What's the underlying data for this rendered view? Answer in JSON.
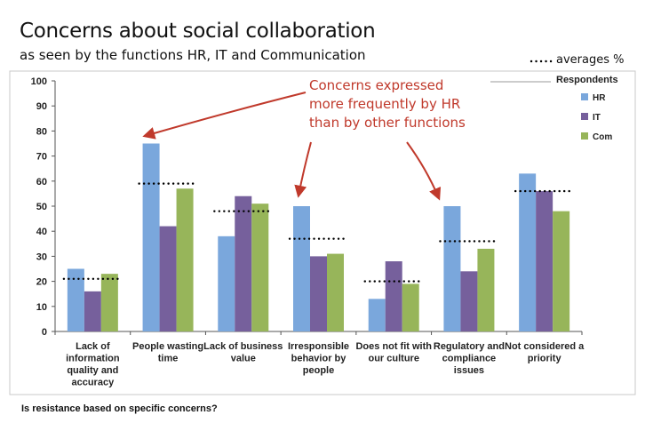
{
  "header": {
    "title": "Concerns about social collaboration",
    "subtitle": "as seen by the functions HR, IT and Communication",
    "averages_label": "averages %"
  },
  "footer": {
    "note": "Is resistance based on specific concerns?"
  },
  "annotation": {
    "lines": [
      "Concerns expressed",
      "more frequently by HR",
      "than by other functions"
    ],
    "color": "#c0392b"
  },
  "chart_data": {
    "type": "bar",
    "categories": [
      [
        "Lack of",
        "information",
        "quality and",
        "accuracy"
      ],
      [
        "People wasting",
        "time"
      ],
      [
        "Lack of business",
        "value"
      ],
      [
        "Irresponsible",
        "behavior by",
        "people"
      ],
      [
        "Does not fit with",
        "our culture"
      ],
      [
        "Regulatory and",
        "compliance",
        "issues"
      ],
      [
        "Not considered a",
        "priority"
      ]
    ],
    "series": [
      {
        "name": "HR",
        "color": "#7aa7dc",
        "values": [
          25,
          75,
          38,
          50,
          13,
          50,
          63
        ]
      },
      {
        "name": "IT",
        "color": "#76609c",
        "values": [
          16,
          42,
          54,
          30,
          28,
          24,
          56
        ]
      },
      {
        "name": "Com",
        "color": "#97b55a",
        "values": [
          23,
          57,
          51,
          31,
          19,
          33,
          48
        ]
      }
    ],
    "averages": [
      21,
      59,
      48,
      37,
      20,
      36,
      56
    ],
    "ylim": [
      0,
      100
    ],
    "yticks": [
      0,
      10,
      20,
      30,
      40,
      50,
      60,
      70,
      80,
      90,
      100
    ],
    "legend_title": "Respondents",
    "legend_position": "right",
    "grid": false
  }
}
